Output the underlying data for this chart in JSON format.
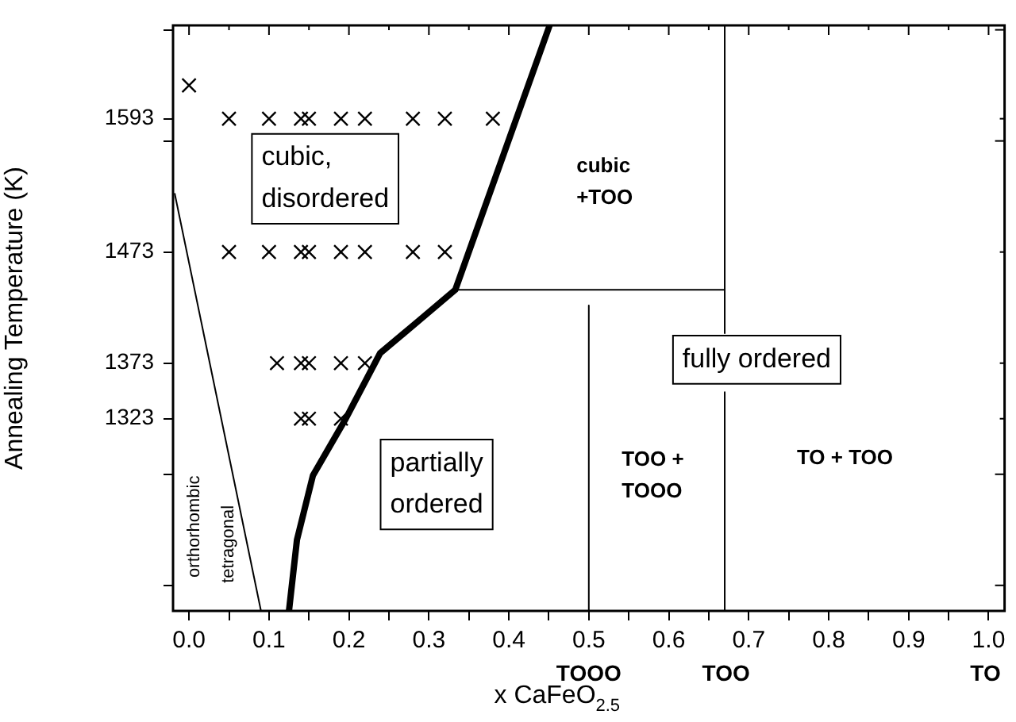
{
  "chart_data": {
    "type": "scatter",
    "xlabel": "x CaFeO$_{2.5}$",
    "ylabel": "Annealing Temperature (K)",
    "xlim": [
      -0.02,
      1.02
    ],
    "ylim": [
      1150,
      1677
    ],
    "xticks": [
      {
        "value": 0,
        "label": "0.0"
      },
      {
        "value": 0.05,
        "label": null
      },
      {
        "value": 0.1,
        "label": "0.1"
      },
      {
        "value": 0.15,
        "label": null
      },
      {
        "value": 0.2,
        "label": "0.2"
      },
      {
        "value": 0.25,
        "label": null
      },
      {
        "value": 0.3,
        "label": "0.3"
      },
      {
        "value": 0.35,
        "label": null
      },
      {
        "value": 0.4,
        "label": "0.4"
      },
      {
        "value": 0.45,
        "label": null
      },
      {
        "value": 0.5,
        "label": "0.5"
      },
      {
        "value": 0.55,
        "label": null
      },
      {
        "value": 0.6,
        "label": "0.6"
      },
      {
        "value": 0.65,
        "label": null
      },
      {
        "value": 0.7,
        "label": "0.7"
      },
      {
        "value": 0.75,
        "label": null
      },
      {
        "value": 0.8,
        "label": "0.8"
      },
      {
        "value": 0.85,
        "label": null
      },
      {
        "value": 0.9,
        "label": "0.9"
      },
      {
        "value": 0.95,
        "label": null
      },
      {
        "value": 1,
        "label": "1.0"
      }
    ],
    "yticks": [
      {
        "value": 1173,
        "label": null
      },
      {
        "value": 1273,
        "label": null
      },
      1323,
      1373,
      1473,
      {
        "value": 1573,
        "label": null
      },
      1593,
      {
        "value": 1673,
        "label": null
      }
    ],
    "grid": false,
    "legend": false,
    "marker": "cross",
    "series": [
      {
        "color": "#000000",
        "x": [
          0,
          0.05,
          0.1,
          0.14,
          0.15,
          0.19,
          0.22,
          0.28,
          0.32,
          0.38,
          0.05,
          0.1,
          0.14,
          0.15,
          0.19,
          0.22,
          0.28,
          0.32,
          0.11,
          0.14,
          0.15,
          0.19,
          0.22,
          0.14,
          0.15,
          0.19
        ],
        "values": [
          1623,
          1593,
          1593,
          1593,
          1593,
          1593,
          1593,
          1593,
          1593,
          1593,
          1473,
          1473,
          1473,
          1473,
          1473,
          1473,
          1473,
          1473,
          1373,
          1373,
          1373,
          1373,
          1373,
          1323,
          1323,
          1323
        ]
      },
      {
        "type": "line",
        "color": "#000000",
        "marker": "none",
        "x": [
          0.125,
          0.135,
          0.155,
          0.196,
          0.239,
          0.292,
          0.333,
          0.451
        ],
        "values": [
          1150,
          1214,
          1272,
          1323,
          1382,
          1414,
          1439,
          1677
        ]
      },
      {
        "type": "line",
        "color": "#000000",
        "marker": "none",
        "x": [
          -0.018,
          0.09
        ],
        "values": [
          1526,
          1150
        ]
      },
      {
        "type": "line",
        "color": "#000000",
        "marker": "none",
        "x": [
          0.333,
          0.67
        ],
        "values": [
          1439,
          1439
        ]
      },
      {
        "type": "line",
        "color": "#000000",
        "marker": "none",
        "x": [
          0.67,
          0.67
        ],
        "values": [
          1677,
          1400
        ]
      },
      {
        "type": "line",
        "color": "#000000",
        "marker": "none",
        "x": [
          0.67,
          0.67
        ],
        "values": [
          1347,
          1150
        ]
      },
      {
        "type": "line",
        "color": "#000000",
        "marker": "none",
        "x": [
          0.5,
          0.5
        ],
        "values": [
          1425,
          1150
        ]
      }
    ],
    "annotations": [
      "cubic,\ndisordered",
      "cubic\n+TOO",
      "fully ordered",
      "partially\nordered",
      "TOO +\nTOOO",
      "TO + TOO",
      "orthorhombic",
      "tetragonal",
      "TOOO",
      "TOO",
      "TO"
    ]
  }
}
